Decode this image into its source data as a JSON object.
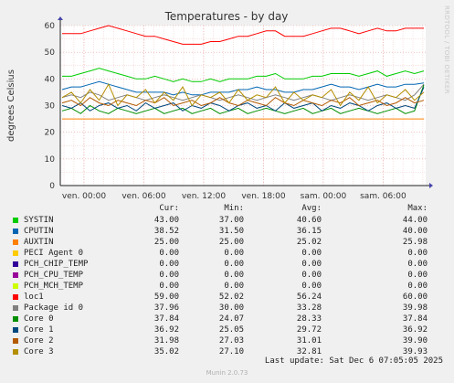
{
  "chart_data": {
    "type": "line",
    "title": "Temperatures - by day",
    "ylabel": "degrees Celsius",
    "xlabel": "",
    "ylim": [
      0,
      60
    ],
    "yticks": [
      0,
      10,
      20,
      30,
      40,
      50,
      60
    ],
    "xticks": [
      "ven. 00:00",
      "ven. 06:00",
      "ven. 12:00",
      "ven. 18:00",
      "sam. 00:00",
      "sam. 06:00"
    ],
    "grid": true,
    "legend_position": "bottom",
    "columns": [
      "Cur:",
      "Min:",
      "Avg:",
      "Max:"
    ],
    "series": [
      {
        "name": "SYSTIN",
        "color": "#00cc00",
        "cur": "43.00",
        "min": "37.00",
        "avg": "40.60",
        "max": "44.00",
        "values": [
          41,
          41,
          42,
          43,
          44,
          43,
          42,
          41,
          40,
          40,
          41,
          40,
          39,
          40,
          39,
          39,
          40,
          39,
          40,
          40,
          40,
          41,
          41,
          42,
          40,
          40,
          40,
          41,
          41,
          42,
          42,
          42,
          41,
          42,
          43,
          41,
          42,
          43,
          42,
          43
        ]
      },
      {
        "name": "CPUTIN",
        "color": "#0066b3",
        "cur": "38.52",
        "min": "31.50",
        "avg": "36.15",
        "max": "40.00",
        "values": [
          36,
          37,
          37,
          38,
          39,
          38,
          37,
          36,
          35,
          35,
          35,
          35,
          34,
          35,
          34,
          34,
          35,
          35,
          35,
          36,
          36,
          37,
          36,
          36,
          35,
          35,
          36,
          36,
          37,
          38,
          37,
          37,
          36,
          37,
          38,
          37,
          37,
          38,
          38,
          38.5
        ]
      },
      {
        "name": "AUXTIN",
        "color": "#ff8000",
        "cur": "25.00",
        "min": "25.00",
        "avg": "25.02",
        "max": "25.98",
        "values": [
          25,
          25,
          25,
          25,
          25,
          25,
          25,
          25,
          25,
          25,
          25,
          25,
          25,
          25,
          25,
          25,
          25,
          25,
          25,
          25,
          25,
          25,
          25,
          25,
          25,
          25,
          25,
          25,
          25,
          25,
          25,
          25,
          25,
          25,
          25,
          25,
          25,
          25,
          25,
          25
        ]
      },
      {
        "name": "PECI Agent 0",
        "color": "#ffcc00",
        "cur": "0.00",
        "min": "0.00",
        "avg": "0.00",
        "max": "0.00",
        "values": [
          0,
          0,
          0,
          0,
          0,
          0,
          0,
          0,
          0,
          0,
          0,
          0,
          0,
          0,
          0,
          0,
          0,
          0,
          0,
          0,
          0,
          0,
          0,
          0,
          0,
          0,
          0,
          0,
          0,
          0,
          0,
          0,
          0,
          0,
          0,
          0,
          0,
          0,
          0,
          0
        ]
      },
      {
        "name": "PCH_CHIP_TEMP",
        "color": "#330099",
        "cur": "0.00",
        "min": "0.00",
        "avg": "0.00",
        "max": "0.00",
        "values": [
          0,
          0,
          0,
          0,
          0,
          0,
          0,
          0,
          0,
          0,
          0,
          0,
          0,
          0,
          0,
          0,
          0,
          0,
          0,
          0,
          0,
          0,
          0,
          0,
          0,
          0,
          0,
          0,
          0,
          0,
          0,
          0,
          0,
          0,
          0,
          0,
          0,
          0,
          0,
          0
        ]
      },
      {
        "name": "PCH_CPU_TEMP",
        "color": "#990099",
        "cur": "0.00",
        "min": "0.00",
        "avg": "0.00",
        "max": "0.00",
        "values": [
          0,
          0,
          0,
          0,
          0,
          0,
          0,
          0,
          0,
          0,
          0,
          0,
          0,
          0,
          0,
          0,
          0,
          0,
          0,
          0,
          0,
          0,
          0,
          0,
          0,
          0,
          0,
          0,
          0,
          0,
          0,
          0,
          0,
          0,
          0,
          0,
          0,
          0,
          0,
          0
        ]
      },
      {
        "name": "PCH_MCH_TEMP",
        "color": "#ccff00",
        "cur": "0.00",
        "min": "0.00",
        "avg": "0.00",
        "max": "0.00",
        "values": [
          0,
          0,
          0,
          0,
          0,
          0,
          0,
          0,
          0,
          0,
          0,
          0,
          0,
          0,
          0,
          0,
          0,
          0,
          0,
          0,
          0,
          0,
          0,
          0,
          0,
          0,
          0,
          0,
          0,
          0,
          0,
          0,
          0,
          0,
          0,
          0,
          0,
          0,
          0,
          0
        ]
      },
      {
        "name": "loc1",
        "color": "#ff0000",
        "cur": "59.00",
        "min": "52.02",
        "avg": "56.24",
        "max": "60.00",
        "values": [
          57,
          57,
          57,
          58,
          59,
          60,
          59,
          58,
          57,
          56,
          56,
          55,
          54,
          53,
          53,
          53,
          54,
          54,
          55,
          56,
          56,
          57,
          58,
          58,
          56,
          56,
          56,
          57,
          58,
          59,
          59,
          58,
          57,
          58,
          59,
          58,
          58,
          59,
          59,
          59
        ]
      },
      {
        "name": "Package id 0",
        "color": "#808080",
        "cur": "37.96",
        "min": "30.00",
        "avg": "33.28",
        "max": "39.98",
        "values": [
          33,
          34,
          33,
          35,
          34,
          32,
          33,
          34,
          33,
          32,
          33,
          34,
          33,
          32,
          33,
          34,
          33,
          32,
          33,
          34,
          33,
          32,
          33,
          34,
          33,
          32,
          33,
          34,
          33,
          32,
          33,
          34,
          33,
          32,
          33,
          34,
          33,
          32,
          34,
          38
        ]
      },
      {
        "name": "Core 0",
        "color": "#008f00",
        "cur": "37.84",
        "min": "24.07",
        "avg": "28.33",
        "max": "37.84",
        "values": [
          28,
          29,
          27,
          30,
          28,
          27,
          29,
          28,
          27,
          28,
          29,
          27,
          28,
          29,
          27,
          28,
          29,
          27,
          28,
          29,
          27,
          28,
          29,
          28,
          27,
          28,
          29,
          27,
          28,
          29,
          27,
          28,
          29,
          28,
          27,
          28,
          29,
          27,
          28,
          37.8
        ]
      },
      {
        "name": "Core 1",
        "color": "#00487d",
        "cur": "36.92",
        "min": "25.05",
        "avg": "29.72",
        "max": "36.92",
        "values": [
          30,
          29,
          31,
          28,
          30,
          31,
          29,
          30,
          28,
          31,
          29,
          30,
          31,
          28,
          30,
          29,
          31,
          30,
          28,
          30,
          31,
          29,
          30,
          28,
          31,
          29,
          30,
          31,
          28,
          30,
          29,
          31,
          30,
          28,
          30,
          31,
          29,
          30,
          29,
          36.9
        ]
      },
      {
        "name": "Core 2",
        "color": "#b35a00",
        "cur": "31.98",
        "min": "27.03",
        "avg": "31.01",
        "max": "39.90",
        "values": [
          31,
          32,
          30,
          33,
          31,
          30,
          32,
          31,
          30,
          32,
          31,
          33,
          30,
          31,
          32,
          30,
          31,
          33,
          31,
          30,
          32,
          31,
          30,
          33,
          31,
          30,
          32,
          31,
          30,
          32,
          31,
          33,
          30,
          31,
          32,
          30,
          31,
          33,
          31,
          32
        ]
      },
      {
        "name": "Core 3",
        "color": "#b38f00",
        "cur": "35.02",
        "min": "27.10",
        "avg": "32.81",
        "max": "39.93",
        "values": [
          33,
          35,
          31,
          36,
          32,
          38,
          30,
          34,
          33,
          36,
          31,
          35,
          32,
          37,
          30,
          34,
          33,
          35,
          31,
          36,
          32,
          34,
          33,
          37,
          31,
          35,
          32,
          34,
          33,
          36,
          30,
          35,
          32,
          37,
          31,
          34,
          33,
          36,
          32,
          35
        ]
      }
    ]
  },
  "footer": {
    "last_update": "Last update: Sat Dec  6 07:05:05 2025",
    "munin_version": "Munin 2.0.73",
    "side_label": "RRDTOOL / TOBI OETIKER"
  }
}
